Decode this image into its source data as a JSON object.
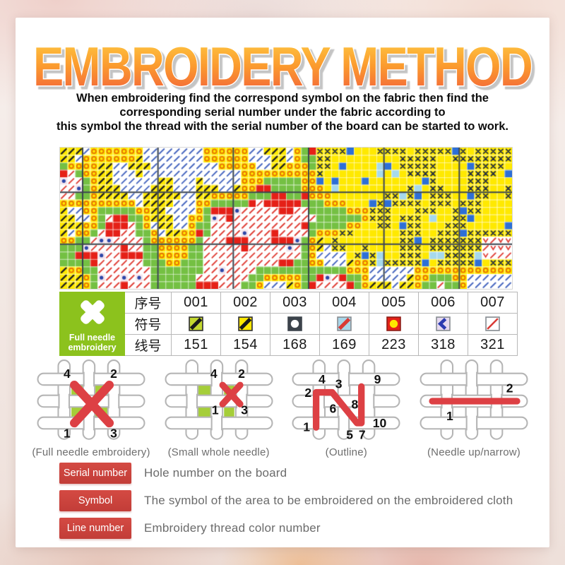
{
  "title": "EMBROIDERY METHOD",
  "title_colors": {
    "top": "#ffce44",
    "mid": "#fb9a2e",
    "bottom": "#f15c3d",
    "outline": "#ffffff",
    "shadow": "#c4c4c4"
  },
  "intro": {
    "line1": "When embroidering find the correspond symbol on the fabric then find the",
    "line2": "corresponding serial number under the fabric according to",
    "line3": "this symbol the thread with the serial number of the board can be started to work."
  },
  "pattern": {
    "seed": 7,
    "cols": 60,
    "rows": 19,
    "bold_cols": [
      3,
      13,
      23,
      33,
      43,
      53
    ],
    "bold_rows": [
      6,
      13
    ],
    "bold_line_color": "#39434e",
    "palette": {
      "yellow": "#ffe900",
      "green": "#74c043",
      "red": "#e52017",
      "white": "#ffffff",
      "orange_ring": "#e87500",
      "red_diag": "#e04038",
      "blue_diag": "#4968c0",
      "black_diag": "#222222",
      "black_x": "#2c3540",
      "blue_solid": "#2d6fd6",
      "light_blue": "#a6d9ec",
      "dot_bg": "#f4e4ec",
      "dot_blue": "#2c46a8"
    }
  },
  "legend_table": {
    "corner_icon": "full-needle-x",
    "corner_line1": "Full needle",
    "corner_line2": "embroidery",
    "corner_color": "#8cc21d",
    "row_labels": [
      "序号",
      "符号",
      "线号"
    ],
    "serials": [
      "001",
      "002",
      "003",
      "004",
      "005",
      "006",
      "007"
    ],
    "symbols": [
      {
        "name": "green-black-band",
        "bg": "#c3d82f",
        "glyph": "band",
        "color": "#1a1a1a",
        "border": "#333333"
      },
      {
        "name": "yellow-black-band",
        "bg": "#ffe800",
        "glyph": "band",
        "color": "#1a1a1a",
        "border": "#333333"
      },
      {
        "name": "dark-white-disc",
        "bg": "#3c434b",
        "glyph": "disc",
        "color": "#ffffff",
        "border": "#3c434b"
      },
      {
        "name": "blue-red-band",
        "bg": "#a9d6e9",
        "glyph": "band",
        "color": "#d93a35",
        "border": "#8a8f94"
      },
      {
        "name": "red-yellow-disc",
        "bg": "#e32119",
        "glyph": "disc",
        "color": "#ffe800",
        "border": "#8f1d17"
      },
      {
        "name": "lavender-chevron",
        "bg": "#e6d9ef",
        "glyph": "chevron",
        "color": "#2b3bb0",
        "border": "#8a8f94"
      },
      {
        "name": "white-red-thinband",
        "bg": "#ffffff",
        "glyph": "thinband",
        "color": "#d93a35",
        "border": "#8a8f94"
      }
    ],
    "line_numbers": [
      "151",
      "154",
      "168",
      "169",
      "223",
      "318",
      "321"
    ]
  },
  "stitch_diagrams": [
    {
      "label": "(Full needle embroidery)",
      "nums": [
        "4",
        "2",
        "1",
        "3"
      ]
    },
    {
      "label": "(Small whole needle)",
      "nums": [
        "4",
        "2",
        "1",
        "3"
      ]
    },
    {
      "label": "(Outline)",
      "nums": [
        "2",
        "4",
        "3",
        "9",
        "6",
        "8",
        "1",
        "5",
        "7",
        "10"
      ]
    },
    {
      "label": "(Needle up/narrow)",
      "nums": [
        "1",
        "2"
      ]
    }
  ],
  "legend_rows": [
    {
      "badge": "Serial number",
      "text": "Hole number on the board"
    },
    {
      "badge": "Symbol",
      "text": "The symbol of the area to be embroidered on the embroidered cloth"
    },
    {
      "badge": "Line number",
      "text": "Embroidery thread color number"
    }
  ],
  "accent": {
    "badge_red": "#cb423d",
    "stitch_red": "#dd4044",
    "diagram_green": "#a5ce39"
  }
}
